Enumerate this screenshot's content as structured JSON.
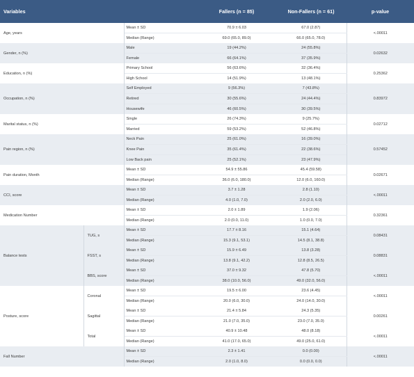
{
  "table": {
    "headers": {
      "variables": "Variables",
      "fallers": "Fallers (n = 85)",
      "non_fallers": "Non-Fallers (n = 61)",
      "p_value": "p-value"
    },
    "groups": [
      {
        "label": "Age, years",
        "p": "<.00011",
        "rows": [
          {
            "stat": "Mean ± SD",
            "fallers": "70.9 ± 6.03",
            "non_fallers": "67.0 (2.87)"
          },
          {
            "stat": "Median (Range)",
            "fallers": "69.0 (65.0, 89.0)",
            "non_fallers": "66.0 (65.0, 78.0)"
          }
        ]
      },
      {
        "label": "Gender, n (%)",
        "p": "0.02632",
        "rows": [
          {
            "stat": "Male",
            "fallers": "19 (44.2%)",
            "non_fallers": "24 (55.8%)"
          },
          {
            "stat": "Female",
            "fallers": "66 (64.1%)",
            "non_fallers": "37 (35.9%)"
          }
        ]
      },
      {
        "label": "Education, n (%)",
        "p": "0.25362",
        "rows": [
          {
            "stat": "Primary School",
            "fallers": "56 (63.6%)",
            "non_fallers": "32 (36.4%)"
          },
          {
            "stat": "High School",
            "fallers": "14 (51.9%)",
            "non_fallers": "13 (48.1%)"
          }
        ]
      },
      {
        "label": "Occupation, n (%)",
        "p": "0.83972",
        "rows": [
          {
            "stat": "Self Employed",
            "fallers": "9 (56.3%)",
            "non_fallers": "7 (43.8%)"
          },
          {
            "stat": "Retired",
            "fallers": "30 (55.6%)",
            "non_fallers": "24 (44.4%)"
          },
          {
            "stat": "Housewife",
            "fallers": "46 (60.5%)",
            "non_fallers": "30 (39.5%)"
          }
        ]
      },
      {
        "label": "Marital status, n (%)",
        "p": "0.02712",
        "rows": [
          {
            "stat": "Single",
            "fallers": "26 (74.3%)",
            "non_fallers": "9 (25.7%)"
          },
          {
            "stat": "Married",
            "fallers": "59 (53.2%)",
            "non_fallers": "52 (46.8%)"
          }
        ]
      },
      {
        "label": "Pain region, n (%)",
        "p": "0.57452",
        "rows": [
          {
            "stat": "Neck Pain",
            "fallers": "25 (61.0%)",
            "non_fallers": "16 (39.0%)"
          },
          {
            "stat": "Knee Pain",
            "fallers": "35 (61.4%)",
            "non_fallers": "22 (38.6%)"
          },
          {
            "stat": "Low Back pain",
            "fallers": "25 (52.1%)",
            "non_fallers": "23 (47.9%)"
          }
        ]
      },
      {
        "label": "Pain duration, Month",
        "p": "0.02671",
        "rows": [
          {
            "stat": "Mean ± SD",
            "fallers": "54.9 ± 55.86",
            "non_fallers": "45.4 (59.58)"
          },
          {
            "stat": "Median (Range)",
            "fallers": "36.0 (6.0, 180.0)",
            "non_fallers": "12.0 (6.0, 160.0)"
          }
        ]
      },
      {
        "label": "CCI, score",
        "p": "<.00011",
        "rows": [
          {
            "stat": "Mean ± SD",
            "fallers": "3.7 ± 1.28",
            "non_fallers": "2.8 (1.10)"
          },
          {
            "stat": "Median (Range)",
            "fallers": "4.0 (1.0, 7.0)",
            "non_fallers": "2.0 (2.0, 6.0)"
          }
        ]
      },
      {
        "label": "Medication Number",
        "p": "0.32361",
        "rows": [
          {
            "stat": "Mean ± SD",
            "fallers": "2.0 ± 1.89",
            "non_fallers": "1.9 (2.06)"
          },
          {
            "stat": "Median (Range)",
            "fallers": "2.0 (0.0, 11.0)",
            "non_fallers": "1.0 (0.0, 7.0)"
          }
        ]
      },
      {
        "label": "Balance tests",
        "subgroups": [
          {
            "label": "TUG, s",
            "p": "0.08431",
            "rows": [
              {
                "stat": "Mean ± SD",
                "fallers": "17.7 ± 8.16",
                "non_fallers": "15.1 (4.64)"
              },
              {
                "stat": "Median (Range)",
                "fallers": "15.3 (9.1, 53.1)",
                "non_fallers": "14.5 (8.1, 38.8)"
              }
            ]
          },
          {
            "label": "FSST, s",
            "p": "0.08831",
            "rows": [
              {
                "stat": "Mean ± SD",
                "fallers": "15.9 ± 6.49",
                "non_fallers": "13.8 (3.28)"
              },
              {
                "stat": "Median (Range)",
                "fallers": "13.8 (9.1, 42.2)",
                "non_fallers": "12.8 (8.5, 26.5)"
              }
            ]
          },
          {
            "label": "BBS, score",
            "p": "<.00011",
            "rows": [
              {
                "stat": "Mean ± SD",
                "fallers": "37.0 ± 9.32",
                "non_fallers": "47.8 (5.70)"
              },
              {
                "stat": "Median (Range)",
                "fallers": "38.0 (10.0, 56.0)",
                "non_fallers": "49.0 (32.0, 56.0)"
              }
            ]
          }
        ]
      },
      {
        "label": "Posture, score",
        "subgroups": [
          {
            "label": "Coronal",
            "p": "<.00011",
            "rows": [
              {
                "stat": "Mean ± SD",
                "fallers": "19.5 ± 6.00",
                "non_fallers": "23.6 (4.45)"
              },
              {
                "stat": " Median (Range)",
                "fallers": "20.0 (6.0, 30.0)",
                "non_fallers": "24.0 (14.0, 30.0)"
              }
            ]
          },
          {
            "label": "Sagittal",
            "p": "0.00261",
            "rows": [
              {
                "stat": "Mean ± SD",
                "fallers": "21.4 ± 5.84",
                "non_fallers": "24.3 (5.35)"
              },
              {
                "stat": "Median (Range)",
                "fallers": "21.0 (7.0, 35.0)",
                "non_fallers": "23.0 (7.0, 35.0)"
              }
            ]
          },
          {
            "label": "Total",
            "p": "<.00011",
            "rows": [
              {
                "stat": "Mean ± SD",
                "fallers": "40.9 ± 10.48",
                "non_fallers": "48.0 (8.18)"
              },
              {
                "stat": "Median (Range)",
                "fallers": "41.0 (17.0, 65.0)",
                "non_fallers": "49.0 (25.0, 61.0)"
              }
            ]
          }
        ]
      },
      {
        "label": "Fall Number",
        "p": "<.00011",
        "rows": [
          {
            "stat": "Mean ± SD",
            "fallers": "2.3 ± 1.41",
            "non_fallers": "0.0 (0.00)"
          },
          {
            "stat": "Median (Range)",
            "fallers": "2.0 (1.0, 8.0)",
            "non_fallers": "0.0 (0.0, 0.0)"
          }
        ]
      }
    ]
  }
}
